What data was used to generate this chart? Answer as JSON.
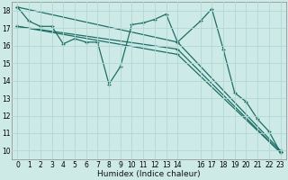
{
  "xlabel": "Humidex (Indice chaleur)",
  "bg_color": "#cdeae7",
  "grid_color": "#b2d8d4",
  "line_color": "#1e6e65",
  "xlim": [
    -0.5,
    23.5
  ],
  "ylim": [
    9.5,
    18.5
  ],
  "yticks": [
    10,
    11,
    12,
    13,
    14,
    15,
    16,
    17,
    18
  ],
  "xticks": [
    0,
    1,
    2,
    3,
    4,
    5,
    6,
    7,
    8,
    9,
    10,
    11,
    12,
    13,
    14,
    16,
    17,
    18,
    19,
    20,
    21,
    22,
    23
  ],
  "series": [
    {
      "x": [
        0,
        1,
        2,
        3,
        4,
        5,
        6,
        7,
        8,
        9,
        10,
        11,
        12,
        13,
        14,
        16,
        17,
        18,
        19,
        20,
        21,
        22,
        23
      ],
      "y": [
        18.2,
        17.4,
        17.1,
        17.1,
        16.1,
        16.4,
        16.2,
        16.2,
        13.8,
        14.8,
        17.2,
        17.3,
        17.5,
        17.8,
        16.2,
        17.4,
        18.1,
        15.8,
        13.3,
        12.8,
        11.8,
        11.1,
        9.9
      ]
    },
    {
      "x": [
        0,
        14,
        23
      ],
      "y": [
        18.2,
        16.2,
        10.0
      ]
    },
    {
      "x": [
        0,
        14,
        23
      ],
      "y": [
        17.1,
        15.8,
        9.9
      ]
    },
    {
      "x": [
        0,
        14,
        23
      ],
      "y": [
        17.1,
        15.5,
        9.9
      ]
    }
  ]
}
